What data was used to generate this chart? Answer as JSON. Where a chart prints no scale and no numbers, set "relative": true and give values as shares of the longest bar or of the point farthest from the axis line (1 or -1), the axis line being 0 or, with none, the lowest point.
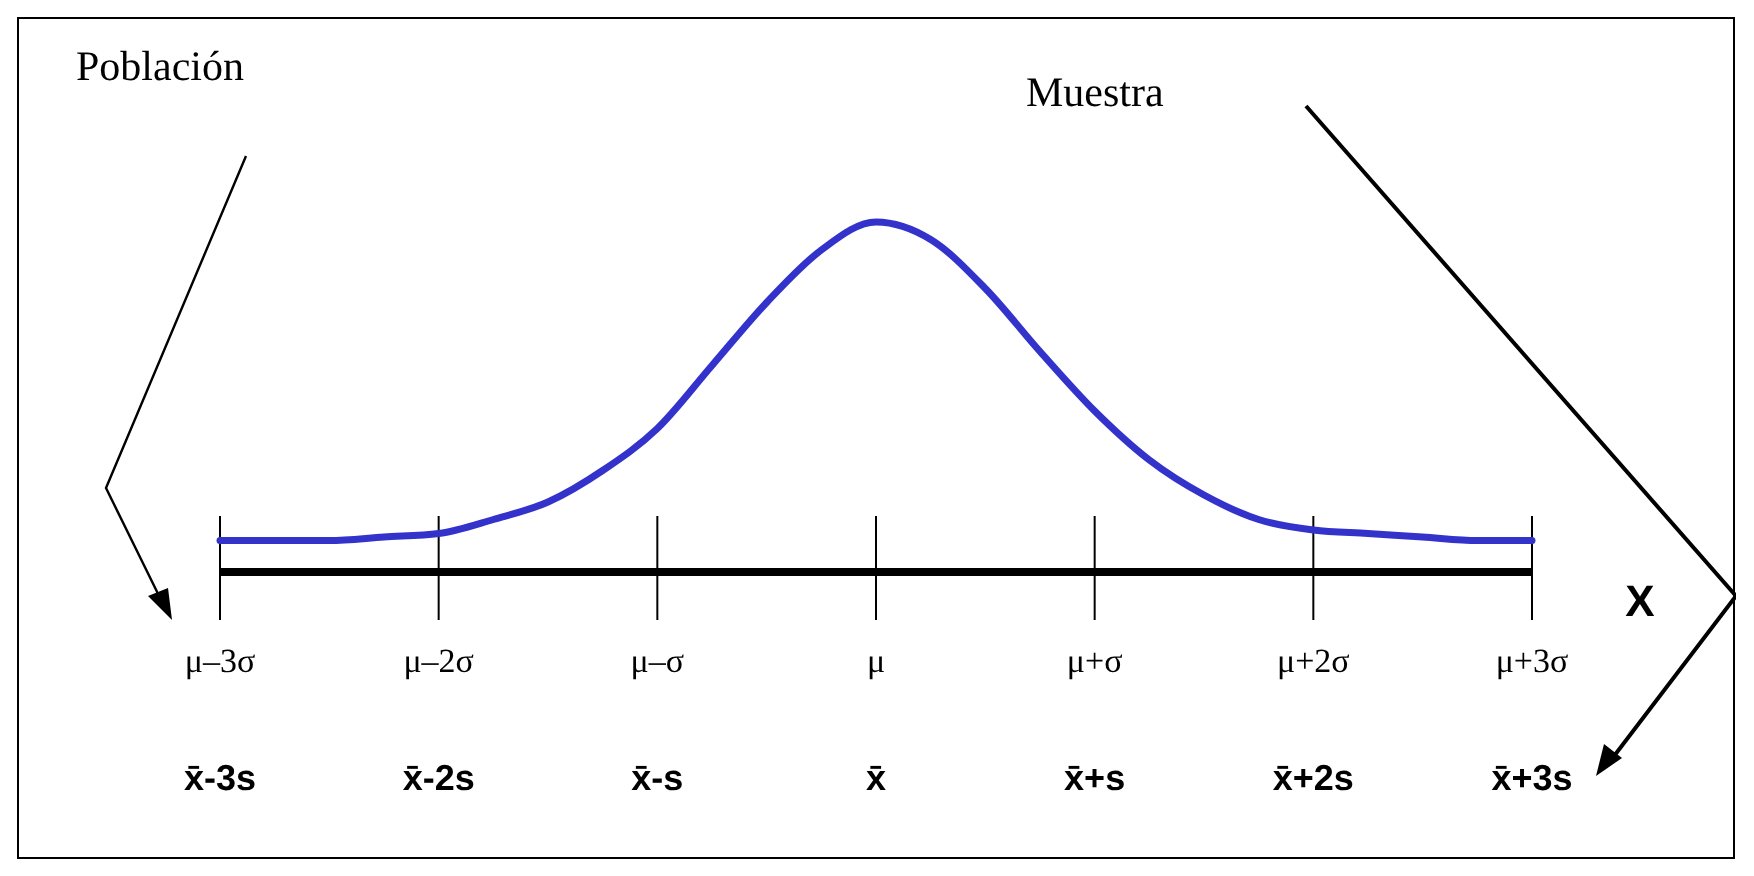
{
  "chart_data": {
    "type": "line",
    "relative": true,
    "xlabel": "X",
    "categories": [
      "μ–3σ\nx̄-3s",
      null,
      null,
      null,
      "μ–2σ\nx̄-2s",
      null,
      null,
      null,
      "μ–σ\nx̄-s",
      null,
      null,
      null,
      "μ\nx̄",
      null,
      null,
      null,
      "μ+σ\nx̄+s",
      null,
      null,
      null,
      "μ+2σ\nx̄+2s",
      null,
      null,
      null,
      "μ+3σ\nx̄+3s"
    ],
    "series": [
      {
        "color": "#3333cc",
        "values": [
          0.09,
          0.09,
          0.09,
          0.1,
          0.11,
          0.15,
          0.2,
          0.29,
          0.41,
          0.59,
          0.77,
          0.92,
          1,
          0.95,
          0.81,
          0.63,
          0.46,
          0.32,
          0.22,
          0.15,
          0.12,
          0.11,
          0.1,
          0.09,
          0.09
        ]
      }
    ],
    "annotations": [
      "Población",
      "Muestra"
    ]
  }
}
